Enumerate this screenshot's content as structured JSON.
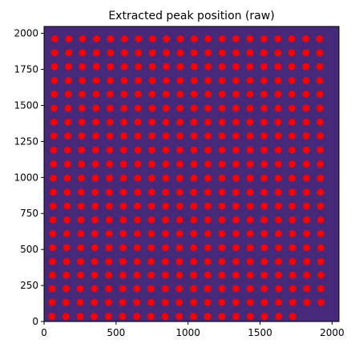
{
  "colors": {
    "background": "#ffffff",
    "image_fill": "#462a79",
    "image_fill_edge": "#4a2d80",
    "marker": "#ff0000",
    "axis": "#000000"
  },
  "chart_data": {
    "type": "scatter",
    "title": "Extracted peak position (raw)",
    "xlabel": "",
    "ylabel": "",
    "xlim": [
      0,
      2048
    ],
    "ylim": [
      0,
      2048
    ],
    "x_ticks": [
      0,
      500,
      1000,
      1500,
      2000
    ],
    "y_ticks": [
      0,
      250,
      500,
      750,
      1000,
      1250,
      1500,
      1750,
      2000
    ],
    "grid": false,
    "background_image": "uniform dark purple (viridis low end)",
    "marker": "circle",
    "marker_color": "#ff0000",
    "grid_rows_y": [
      35,
      133,
      228,
      322,
      416,
      512,
      610,
      705,
      801,
      897,
      995,
      1093,
      1190,
      1288,
      1384,
      1480,
      1578,
      1673,
      1769,
      1865,
      1962
    ],
    "grid_cols_x_bottom": [
      55,
      152,
      250,
      348,
      447,
      545,
      644,
      742,
      841,
      939,
      1038,
      1136,
      1235,
      1333,
      1432,
      1530,
      1629,
      1727,
      1826,
      1924,
      2023
    ],
    "grid_cols_x_top": [
      75,
      172,
      268,
      365,
      462,
      559,
      656,
      753,
      850,
      946,
      1043,
      1139,
      1237,
      1333,
      1430,
      1527,
      1624,
      1720,
      1818,
      1914,
      2011
    ],
    "row_point_counts": [
      18,
      20,
      20,
      20,
      20,
      20,
      20,
      20,
      20,
      20,
      20,
      20,
      20,
      20,
      20,
      20,
      20,
      20,
      20,
      20,
      20
    ],
    "row_first_col": [
      0,
      0,
      0,
      0,
      0,
      0,
      0,
      0,
      0,
      0,
      0,
      0,
      0,
      0,
      0,
      0,
      0,
      0,
      0,
      0,
      0
    ],
    "note_series": "peaks form a regular 21x21 lattice with slight rotation; last column sits on the right edge"
  }
}
